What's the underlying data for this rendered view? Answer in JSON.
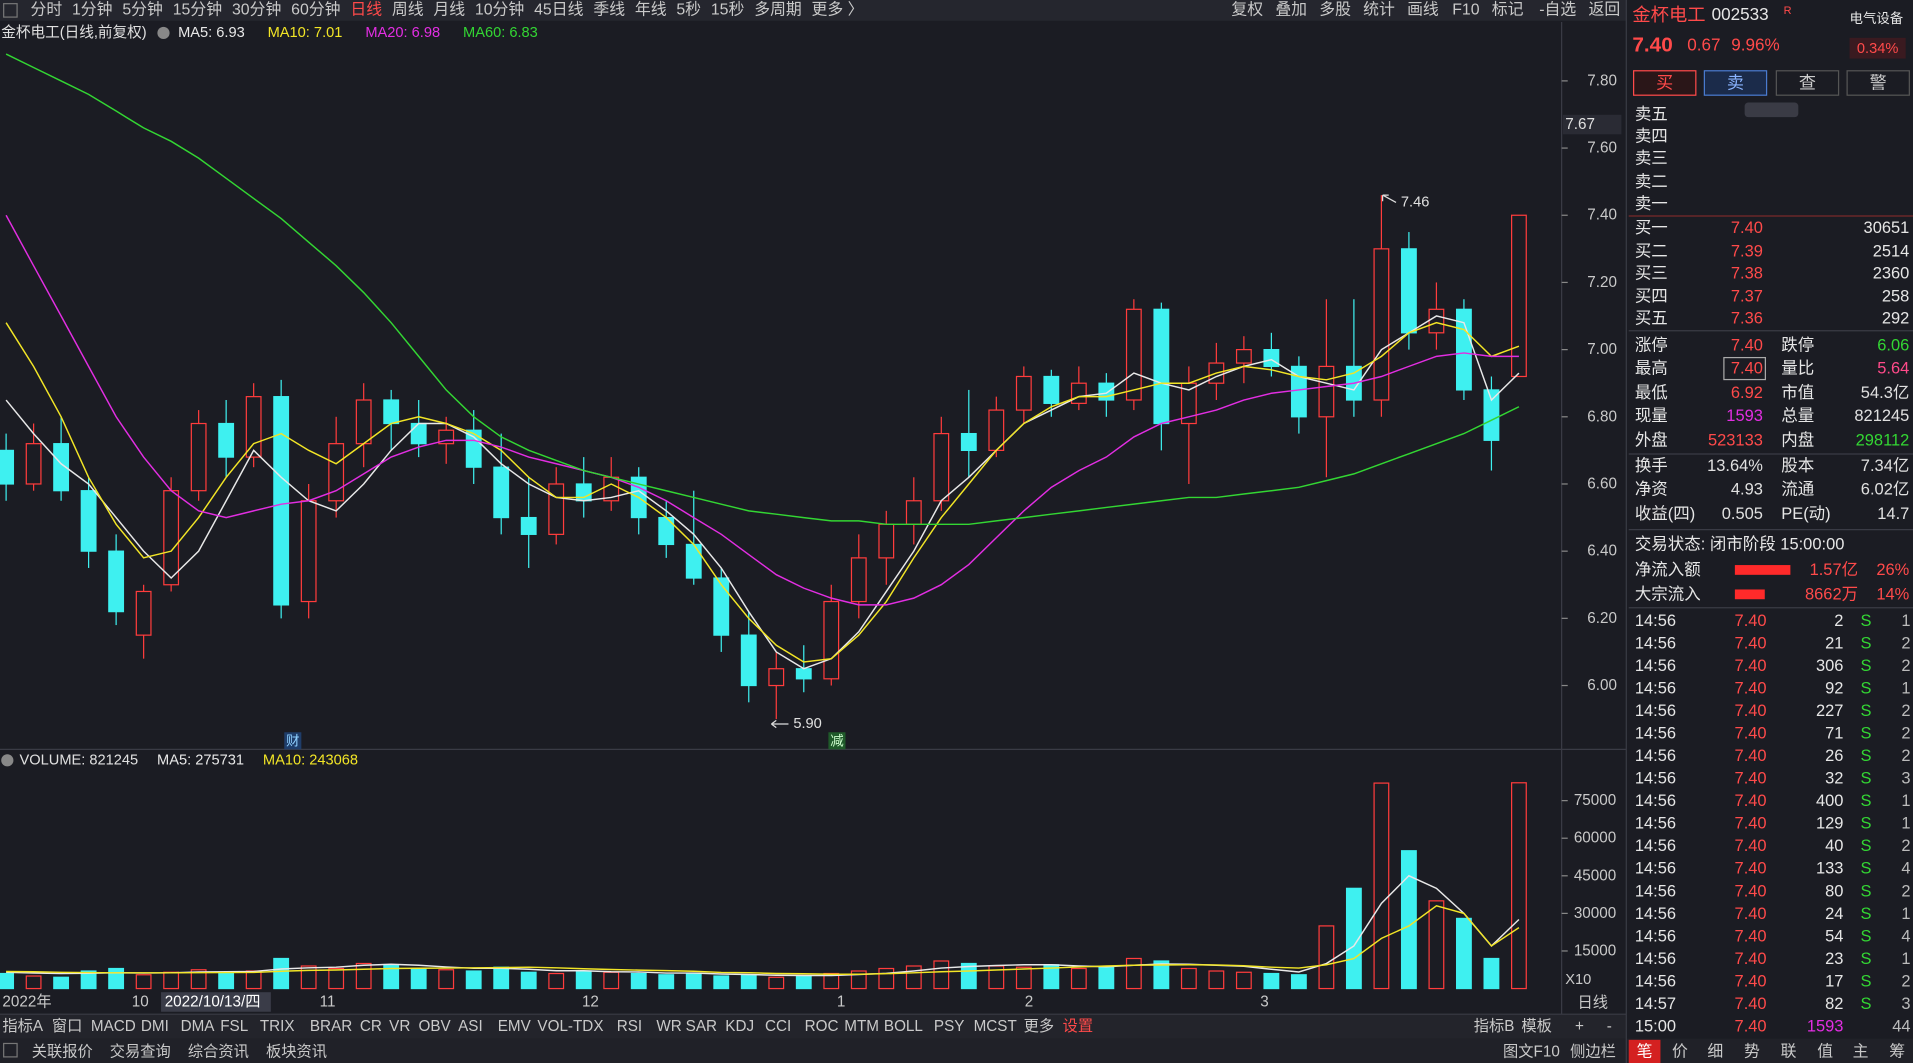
{
  "toolbar": {
    "left": [
      {
        "label": "分时"
      },
      {
        "label": "1分钟"
      },
      {
        "label": "5分钟"
      },
      {
        "label": "15分钟"
      },
      {
        "label": "30分钟"
      },
      {
        "label": "60分钟"
      },
      {
        "label": "日线",
        "color": "#ff4a4a"
      },
      {
        "label": "周线"
      },
      {
        "label": "月线"
      },
      {
        "label": "10分钟"
      },
      {
        "label": "45日线"
      },
      {
        "label": "季线"
      },
      {
        "label": "年线"
      },
      {
        "label": "5秒"
      },
      {
        "label": "15秒"
      },
      {
        "label": "多周期"
      },
      {
        "label": "更多 〉"
      }
    ],
    "right": [
      "复权",
      "叠加",
      "多股",
      "统计",
      "画线",
      "F10",
      "标记",
      "-自选",
      "返回"
    ]
  },
  "chart_data": [
    {
      "type": "candlestick",
      "title": "金杯电工(日线,前复权)",
      "ylim": [
        5.81,
        7.91
      ],
      "yticks": [
        {
          "value": 6,
          "label": "6.00"
        },
        {
          "value": 6.2,
          "label": "6.20"
        },
        {
          "value": 6.4,
          "label": "6.40"
        },
        {
          "value": 6.6,
          "label": "6.60"
        },
        {
          "value": 6.8,
          "label": "6.80"
        },
        {
          "value": 7,
          "label": "7.00"
        },
        {
          "value": 7.2,
          "label": "7.20"
        },
        {
          "value": 7.4,
          "label": "7.40"
        },
        {
          "value": 7.6,
          "label": "7.60"
        },
        {
          "value": 7.8,
          "label": "7.80"
        }
      ],
      "cursor_price": 7.67,
      "max_label": 7.46,
      "min_label": {
        "value": 5.9,
        "label": "5.90"
      },
      "event_markers": [
        "财",
        "减"
      ],
      "up_color": "#ff3c3c",
      "down_color": "#3ef0f0",
      "open": [
        6.7,
        6.6,
        6.72,
        6.58,
        6.4,
        6.15,
        6.3,
        6.58,
        6.78,
        6.68,
        6.86,
        6.25,
        6.55,
        6.72,
        6.85,
        6.78,
        6.72,
        6.76,
        6.65,
        6.5,
        6.45,
        6.6,
        6.55,
        6.62,
        6.5,
        6.42,
        6.32,
        6.15,
        6.0,
        6.05,
        6.02,
        6.25,
        6.38,
        6.48,
        6.55,
        6.75,
        6.7,
        6.82,
        6.92,
        6.84,
        6.9,
        6.85,
        7.12,
        6.78,
        6.9,
        6.96,
        7.0,
        6.95,
        6.8,
        6.95,
        6.85,
        7.3,
        7.05,
        7.12,
        6.88,
        6.92
      ],
      "high": [
        6.75,
        6.78,
        6.8,
        6.62,
        6.45,
        6.3,
        6.62,
        6.82,
        6.85,
        6.9,
        6.91,
        6.6,
        6.8,
        6.9,
        6.88,
        6.85,
        6.8,
        6.82,
        6.75,
        6.62,
        6.65,
        6.68,
        6.68,
        6.65,
        6.55,
        6.58,
        6.35,
        6.22,
        6.1,
        6.12,
        6.3,
        6.45,
        6.52,
        6.62,
        6.8,
        6.88,
        6.86,
        6.95,
        6.94,
        6.95,
        6.93,
        7.15,
        7.14,
        6.95,
        7.02,
        7.04,
        7.05,
        6.98,
        7.15,
        7.15,
        7.46,
        7.35,
        7.2,
        7.15,
        6.92,
        7.4
      ],
      "low": [
        6.55,
        6.58,
        6.55,
        6.35,
        6.18,
        6.08,
        6.28,
        6.55,
        6.62,
        6.65,
        6.2,
        6.2,
        6.5,
        6.65,
        6.7,
        6.68,
        6.66,
        6.6,
        6.45,
        6.35,
        6.42,
        6.5,
        6.52,
        6.45,
        6.38,
        6.3,
        6.1,
        5.95,
        5.9,
        5.98,
        6.0,
        6.2,
        6.3,
        6.42,
        6.52,
        6.62,
        6.68,
        6.78,
        6.8,
        6.82,
        6.8,
        6.82,
        6.7,
        6.6,
        6.85,
        6.9,
        6.92,
        6.75,
        6.62,
        6.8,
        6.8,
        7.0,
        7.0,
        6.85,
        6.64,
        6.92
      ],
      "close": [
        6.6,
        6.72,
        6.58,
        6.4,
        6.22,
        6.28,
        6.58,
        6.78,
        6.68,
        6.86,
        6.24,
        6.55,
        6.72,
        6.85,
        6.78,
        6.72,
        6.76,
        6.65,
        6.5,
        6.45,
        6.6,
        6.55,
        6.62,
        6.5,
        6.42,
        6.32,
        6.15,
        6.0,
        6.05,
        6.02,
        6.25,
        6.38,
        6.48,
        6.55,
        6.75,
        6.7,
        6.82,
        6.92,
        6.84,
        6.9,
        6.85,
        7.12,
        6.78,
        6.9,
        6.96,
        7.0,
        6.95,
        6.8,
        6.95,
        6.85,
        7.3,
        7.05,
        7.12,
        6.88,
        6.73,
        7.4
      ],
      "series": [
        {
          "name": "MA5: 6.93",
          "color": "#e8e8e8",
          "values": [
            6.85,
            6.75,
            6.66,
            6.6,
            6.5,
            6.4,
            6.32,
            6.4,
            6.55,
            6.7,
            6.62,
            6.55,
            6.52,
            6.6,
            6.7,
            6.78,
            6.78,
            6.74,
            6.66,
            6.6,
            6.56,
            6.55,
            6.56,
            6.58,
            6.52,
            6.45,
            6.35,
            6.22,
            6.1,
            6.05,
            6.08,
            6.16,
            6.28,
            6.4,
            6.55,
            6.62,
            6.7,
            6.78,
            6.82,
            6.86,
            6.87,
            6.93,
            6.9,
            6.88,
            6.92,
            6.95,
            6.97,
            6.92,
            6.9,
            6.88,
            7.0,
            7.05,
            7.1,
            7.08,
            6.85,
            6.93
          ]
        },
        {
          "name": "MA10: 7.01",
          "color": "#f2e526",
          "values": [
            7.08,
            6.95,
            6.8,
            6.62,
            6.48,
            6.38,
            6.4,
            6.5,
            6.62,
            6.72,
            6.75,
            6.7,
            6.66,
            6.72,
            6.78,
            6.8,
            6.78,
            6.75,
            6.7,
            6.62,
            6.56,
            6.56,
            6.6,
            6.56,
            6.5,
            6.42,
            6.3,
            6.2,
            6.12,
            6.07,
            6.08,
            6.15,
            6.25,
            6.38,
            6.5,
            6.6,
            6.7,
            6.78,
            6.83,
            6.86,
            6.86,
            6.88,
            6.9,
            6.9,
            6.93,
            6.95,
            6.94,
            6.92,
            6.91,
            6.93,
            6.98,
            7.05,
            7.08,
            7.06,
            6.98,
            7.01
          ]
        },
        {
          "name": "MA20: 6.98",
          "color": "#e22ee2",
          "values": [
            7.4,
            7.25,
            7.1,
            6.95,
            6.8,
            6.68,
            6.58,
            6.52,
            6.5,
            6.52,
            6.54,
            6.55,
            6.58,
            6.63,
            6.68,
            6.71,
            6.73,
            6.73,
            6.71,
            6.68,
            6.66,
            6.64,
            6.62,
            6.59,
            6.55,
            6.5,
            6.45,
            6.39,
            6.33,
            6.29,
            6.26,
            6.24,
            6.24,
            6.26,
            6.3,
            6.36,
            6.44,
            6.52,
            6.59,
            6.64,
            6.68,
            6.74,
            6.78,
            6.8,
            6.82,
            6.85,
            6.87,
            6.88,
            6.89,
            6.9,
            6.92,
            6.95,
            6.98,
            6.99,
            6.98,
            6.98
          ]
        },
        {
          "name": "MA60: 6.83",
          "color": "#33d633",
          "values": [
            7.88,
            7.84,
            7.8,
            7.76,
            7.71,
            7.66,
            7.62,
            7.57,
            7.51,
            7.45,
            7.39,
            7.32,
            7.25,
            7.17,
            7.08,
            6.98,
            6.88,
            6.8,
            6.74,
            6.7,
            6.67,
            6.64,
            6.62,
            6.6,
            6.58,
            6.56,
            6.54,
            6.52,
            6.51,
            6.5,
            6.49,
            6.49,
            6.48,
            6.48,
            6.48,
            6.48,
            6.49,
            6.5,
            6.51,
            6.52,
            6.53,
            6.54,
            6.55,
            6.56,
            6.56,
            6.57,
            6.58,
            6.59,
            6.61,
            6.63,
            6.66,
            6.69,
            6.72,
            6.75,
            6.79,
            6.83
          ]
        }
      ]
    },
    {
      "type": "bar",
      "title": "VOLUME: 821245",
      "ylim": [
        0,
        86700
      ],
      "yticks": [
        15000,
        30000,
        45000,
        60000,
        75000
      ],
      "unit_label": "X10",
      "values": [
        6000,
        5000,
        4500,
        7000,
        8000,
        5500,
        6500,
        7500,
        6000,
        7000,
        12000,
        9000,
        8000,
        10000,
        9500,
        8000,
        7500,
        7000,
        8500,
        6500,
        6000,
        7000,
        6500,
        6000,
        5500,
        6000,
        5000,
        5500,
        4500,
        5000,
        6000,
        7000,
        8000,
        9000,
        11000,
        10000,
        9000,
        8500,
        9500,
        8000,
        8500,
        12000,
        11000,
        8000,
        7000,
        6500,
        6000,
        5500,
        25000,
        40000,
        82000,
        55000,
        35000,
        28000,
        12000,
        82124.5
      ],
      "series": [
        {
          "name": "MA5: 275731",
          "color": "#e8e8e8",
          "values": [
            6500,
            6200,
            6000,
            6100,
            6300,
            6200,
            6300,
            6600,
            6700,
            6800,
            7800,
            8300,
            8500,
            9300,
            9700,
            9300,
            8600,
            8100,
            8100,
            7700,
            7100,
            7100,
            6700,
            6600,
            6200,
            6200,
            5800,
            5600,
            5300,
            5200,
            5200,
            5600,
            6100,
            7000,
            8200,
            8800,
            9200,
            9500,
            9500,
            9000,
            8700,
            9300,
            9800,
            9700,
            9300,
            8900,
            7700,
            6600,
            10000,
            17000,
            34000,
            45000,
            40000,
            30000,
            17000,
            27573.1
          ]
        },
        {
          "name": "MA10: 243068",
          "color": "#f2e526",
          "values": [
            6800,
            6700,
            6500,
            6400,
            6300,
            6300,
            6300,
            6350,
            6400,
            6450,
            6900,
            7250,
            7400,
            7700,
            8000,
            8100,
            8200,
            8300,
            8400,
            8500,
            8300,
            7900,
            7600,
            7350,
            7150,
            6900,
            6450,
            6350,
            6000,
            5900,
            5700,
            5700,
            5950,
            6300,
            6700,
            7000,
            7400,
            7800,
            8200,
            8600,
            9000,
            9300,
            9400,
            9500,
            9400,
            9100,
            8500,
            8200,
            9500,
            12000,
            20000,
            25000,
            33000,
            30000,
            17000,
            24306.8
          ]
        }
      ],
      "x_labels": [
        "2022年",
        "10",
        "2022/10/13/四",
        "11",
        "12",
        "1",
        "2",
        "3"
      ],
      "period_label": "日线"
    }
  ],
  "indicator_tabs": {
    "left": [
      {
        "label": "指标A"
      },
      {
        "label": "窗口"
      },
      {
        "label": "MACD"
      },
      {
        "label": "DMI"
      },
      {
        "label": "DMA"
      },
      {
        "label": "FSL"
      },
      {
        "label": "TRIX"
      },
      {
        "label": "BRAR"
      },
      {
        "label": "CR"
      },
      {
        "label": "VR"
      },
      {
        "label": "OBV"
      },
      {
        "label": "ASI"
      },
      {
        "label": "EMV"
      },
      {
        "label": "VOL-TDX"
      },
      {
        "label": "RSI"
      },
      {
        "label": "WR"
      },
      {
        "label": "SAR"
      },
      {
        "label": "KDJ"
      },
      {
        "label": "CCI"
      },
      {
        "label": "ROC"
      },
      {
        "label": "MTM"
      },
      {
        "label": "BOLL"
      },
      {
        "label": "PSY"
      },
      {
        "label": "MCST"
      },
      {
        "label": "更多"
      },
      {
        "label": "设置",
        "color": "#ff4a4a"
      }
    ],
    "right": [
      "指标B",
      "模板",
      "+",
      "-"
    ]
  },
  "status_bar": {
    "left": [
      "关联报价",
      "交易查询",
      "综合资讯",
      "板块资讯"
    ],
    "right": [
      "图文F10",
      "侧边栏"
    ]
  },
  "quote": {
    "name": "金杯电工",
    "code": "002533",
    "flag": "R",
    "sector": "电气设备",
    "sector_change": "0.34%",
    "price": "7.40",
    "change": "0.67",
    "change_pct": "9.96%"
  },
  "actions": [
    "买",
    "卖",
    "查",
    "警"
  ],
  "ask": [
    "卖五",
    "卖四",
    "卖三",
    "卖二",
    "卖一"
  ],
  "bid": [
    {
      "label": "买一",
      "price": "7.40",
      "volume": "30651"
    },
    {
      "label": "买二",
      "price": "7.39",
      "volume": "2514"
    },
    {
      "label": "买三",
      "price": "7.38",
      "volume": "2360"
    },
    {
      "label": "买四",
      "price": "7.37",
      "volume": "258"
    },
    {
      "label": "买五",
      "price": "7.36",
      "volume": "292"
    }
  ],
  "stats": [
    [
      {
        "label": "涨停",
        "value": "7.40",
        "color": "#ff4a4a"
      },
      {
        "label": "跌停",
        "value": "6.06",
        "color": "#33d633"
      }
    ],
    [
      {
        "label": "最高",
        "value": "7.40",
        "color": "#ff4a4a"
      },
      {
        "label": "量比",
        "value": "5.64",
        "color": "#ff4a8a"
      }
    ],
    [
      {
        "label": "最低",
        "value": "6.92",
        "color": "#ff4a4a"
      },
      {
        "label": "市值",
        "value": "54.3亿",
        "color": "#e0e0e0"
      }
    ],
    [
      {
        "label": "现量",
        "value": "1593",
        "color": "#e22ee2"
      },
      {
        "label": "总量",
        "value": "821245",
        "color": "#e0e0e0"
      }
    ],
    [
      {
        "label": "外盘",
        "value": "523133",
        "color": "#ff4a4a"
      },
      {
        "label": "内盘",
        "value": "298112",
        "color": "#33d633"
      }
    ],
    [
      {
        "label": "换手",
        "value": "13.64%",
        "color": "#e0e0e0"
      },
      {
        "label": "股本",
        "value": "7.34亿",
        "color": "#e0e0e0"
      }
    ],
    [
      {
        "label": "净资",
        "value": "4.93",
        "color": "#e0e0e0"
      },
      {
        "label": "流通",
        "value": "6.02亿",
        "color": "#e0e0e0"
      }
    ],
    [
      {
        "label": "收益(四)",
        "value": "0.505",
        "color": "#e0e0e0"
      },
      {
        "label": "PE(动)",
        "value": "14.7",
        "color": "#e0e0e0"
      }
    ]
  ],
  "status": "交易状态: 闭市阶段 15:00:00",
  "flows": [
    {
      "label": "净流入额",
      "amount": "1.57亿",
      "pct": {
        "value": 26,
        "label": "26%"
      }
    },
    {
      "label": "大宗流入",
      "amount": "8662万",
      "pct": {
        "value": 14,
        "label": "14%"
      }
    }
  ],
  "ticks": [
    {
      "time": "14:56",
      "price": "7.40",
      "volume": "2",
      "side": "S",
      "count": "1"
    },
    {
      "time": "14:56",
      "price": "7.40",
      "volume": "21",
      "side": "S",
      "count": "2"
    },
    {
      "time": "14:56",
      "price": "7.40",
      "volume": "306",
      "side": "S",
      "count": "2"
    },
    {
      "time": "14:56",
      "price": "7.40",
      "volume": "92",
      "side": "S",
      "count": "1"
    },
    {
      "time": "14:56",
      "price": "7.40",
      "volume": "227",
      "side": "S",
      "count": "2"
    },
    {
      "time": "14:56",
      "price": "7.40",
      "volume": "71",
      "side": "S",
      "count": "2"
    },
    {
      "time": "14:56",
      "price": "7.40",
      "volume": "26",
      "side": "S",
      "count": "2"
    },
    {
      "time": "14:56",
      "price": "7.40",
      "volume": "32",
      "side": "S",
      "count": "3"
    },
    {
      "time": "14:56",
      "price": "7.40",
      "volume": "400",
      "side": "S",
      "count": "1"
    },
    {
      "time": "14:56",
      "price": "7.40",
      "volume": "129",
      "side": "S",
      "count": "1"
    },
    {
      "time": "14:56",
      "price": "7.40",
      "volume": "40",
      "side": "S",
      "count": "2"
    },
    {
      "time": "14:56",
      "price": "7.40",
      "volume": "133",
      "side": "S",
      "count": "4"
    },
    {
      "time": "14:56",
      "price": "7.40",
      "volume": "80",
      "side": "S",
      "count": "2"
    },
    {
      "time": "14:56",
      "price": "7.40",
      "volume": "24",
      "side": "S",
      "count": "1"
    },
    {
      "time": "14:56",
      "price": "7.40",
      "volume": "54",
      "side": "S",
      "count": "4"
    },
    {
      "time": "14:56",
      "price": "7.40",
      "volume": "23",
      "side": "S",
      "count": "1"
    },
    {
      "time": "14:56",
      "price": "7.40",
      "volume": "17",
      "side": "S",
      "count": "2"
    },
    {
      "time": "14:57",
      "price": "7.40",
      "volume": "82",
      "side": "S",
      "count": "3"
    },
    {
      "time": "15:00",
      "price": "7.40",
      "volume": "1593",
      "count": "44",
      "color": "#e22ee2"
    }
  ],
  "tabs": [
    "笔",
    "价",
    "细",
    "势",
    "联",
    "值",
    "主",
    "筹"
  ]
}
